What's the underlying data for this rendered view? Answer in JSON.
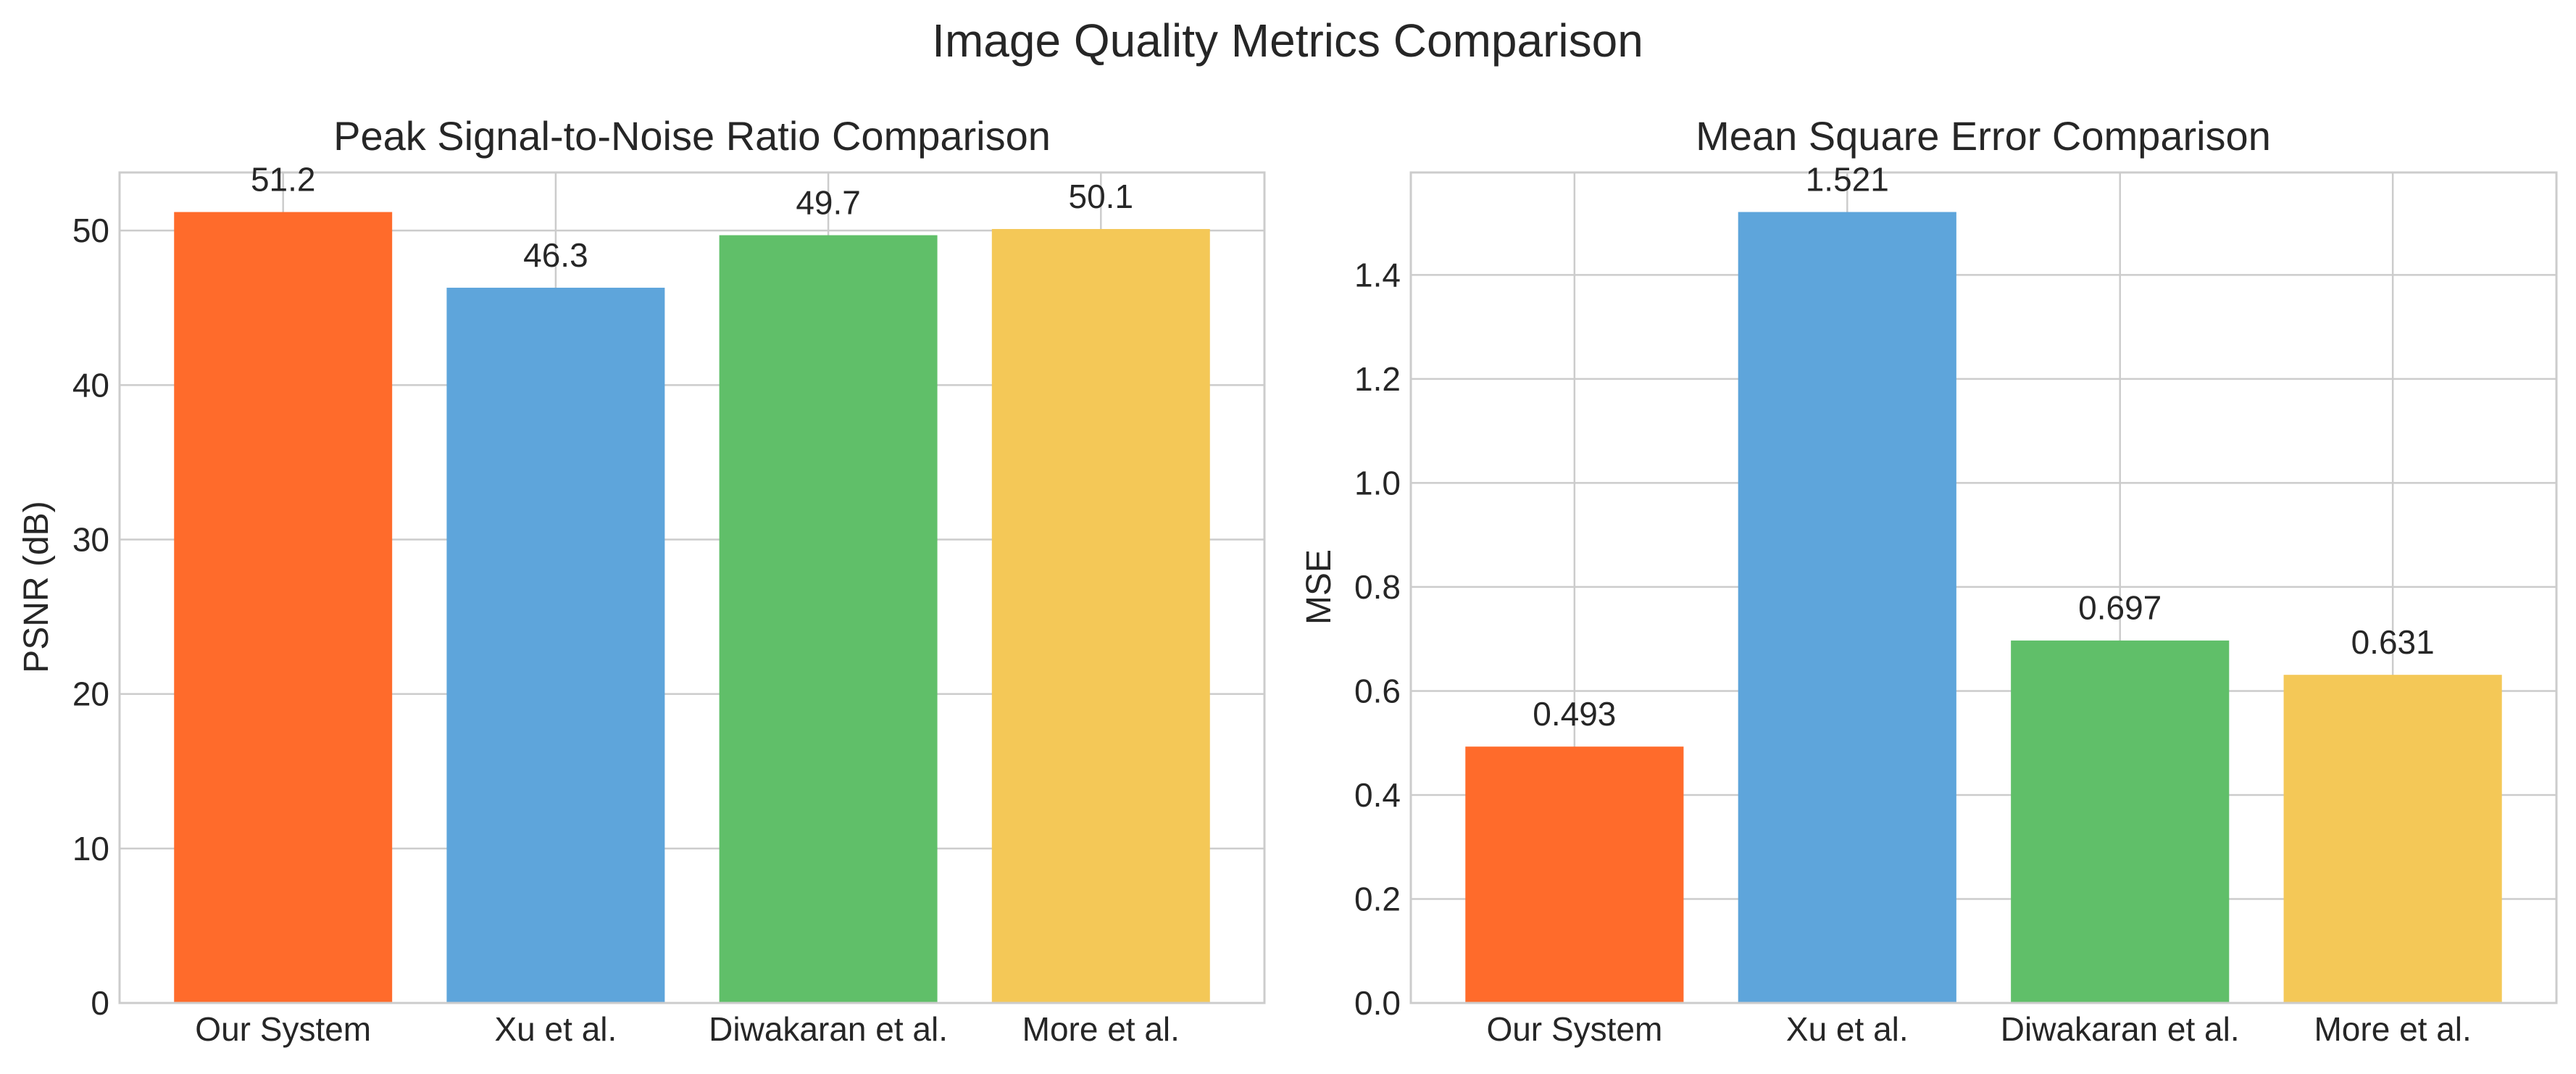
{
  "figure": {
    "title": "Image Quality Metrics Comparison"
  },
  "chart_data": [
    {
      "type": "bar",
      "title": "Peak Signal-to-Noise Ratio Comparison",
      "xlabel": "",
      "ylabel": "PSNR (dB)",
      "categories": [
        "Our System",
        "Xu et al.",
        "Diwakaran et al.",
        "More et al."
      ],
      "values": [
        51.2,
        46.3,
        49.7,
        50.1
      ],
      "value_labels": [
        "51.2",
        "46.3",
        "49.7",
        "50.1"
      ],
      "colors": [
        "#ff6b2b",
        "#5ea5db",
        "#60bf69",
        "#f4c857"
      ],
      "ylim": [
        0,
        53.76
      ],
      "yticks": [
        0,
        10,
        20,
        30,
        40,
        50
      ],
      "ytick_labels": [
        "0",
        "10",
        "20",
        "30",
        "40",
        "50"
      ],
      "grid": true,
      "legend": "none"
    },
    {
      "type": "bar",
      "title": "Mean Square Error Comparison",
      "xlabel": "",
      "ylabel": "MSE",
      "categories": [
        "Our System",
        "Xu et al.",
        "Diwakaran et al.",
        "More et al."
      ],
      "values": [
        0.493,
        1.521,
        0.697,
        0.631
      ],
      "value_labels": [
        "0.493",
        "1.521",
        "0.697",
        "0.631"
      ],
      "colors": [
        "#ff6b2b",
        "#5ea5db",
        "#60bf69",
        "#f4c857"
      ],
      "ylim": [
        0,
        1.597
      ],
      "yticks": [
        0,
        0.2,
        0.4,
        0.6,
        0.8,
        1.0,
        1.2,
        1.4
      ],
      "ytick_labels": [
        "0.0",
        "0.2",
        "0.4",
        "0.6",
        "0.8",
        "1.0",
        "1.2",
        "1.4"
      ],
      "grid": true,
      "legend": "none"
    }
  ]
}
